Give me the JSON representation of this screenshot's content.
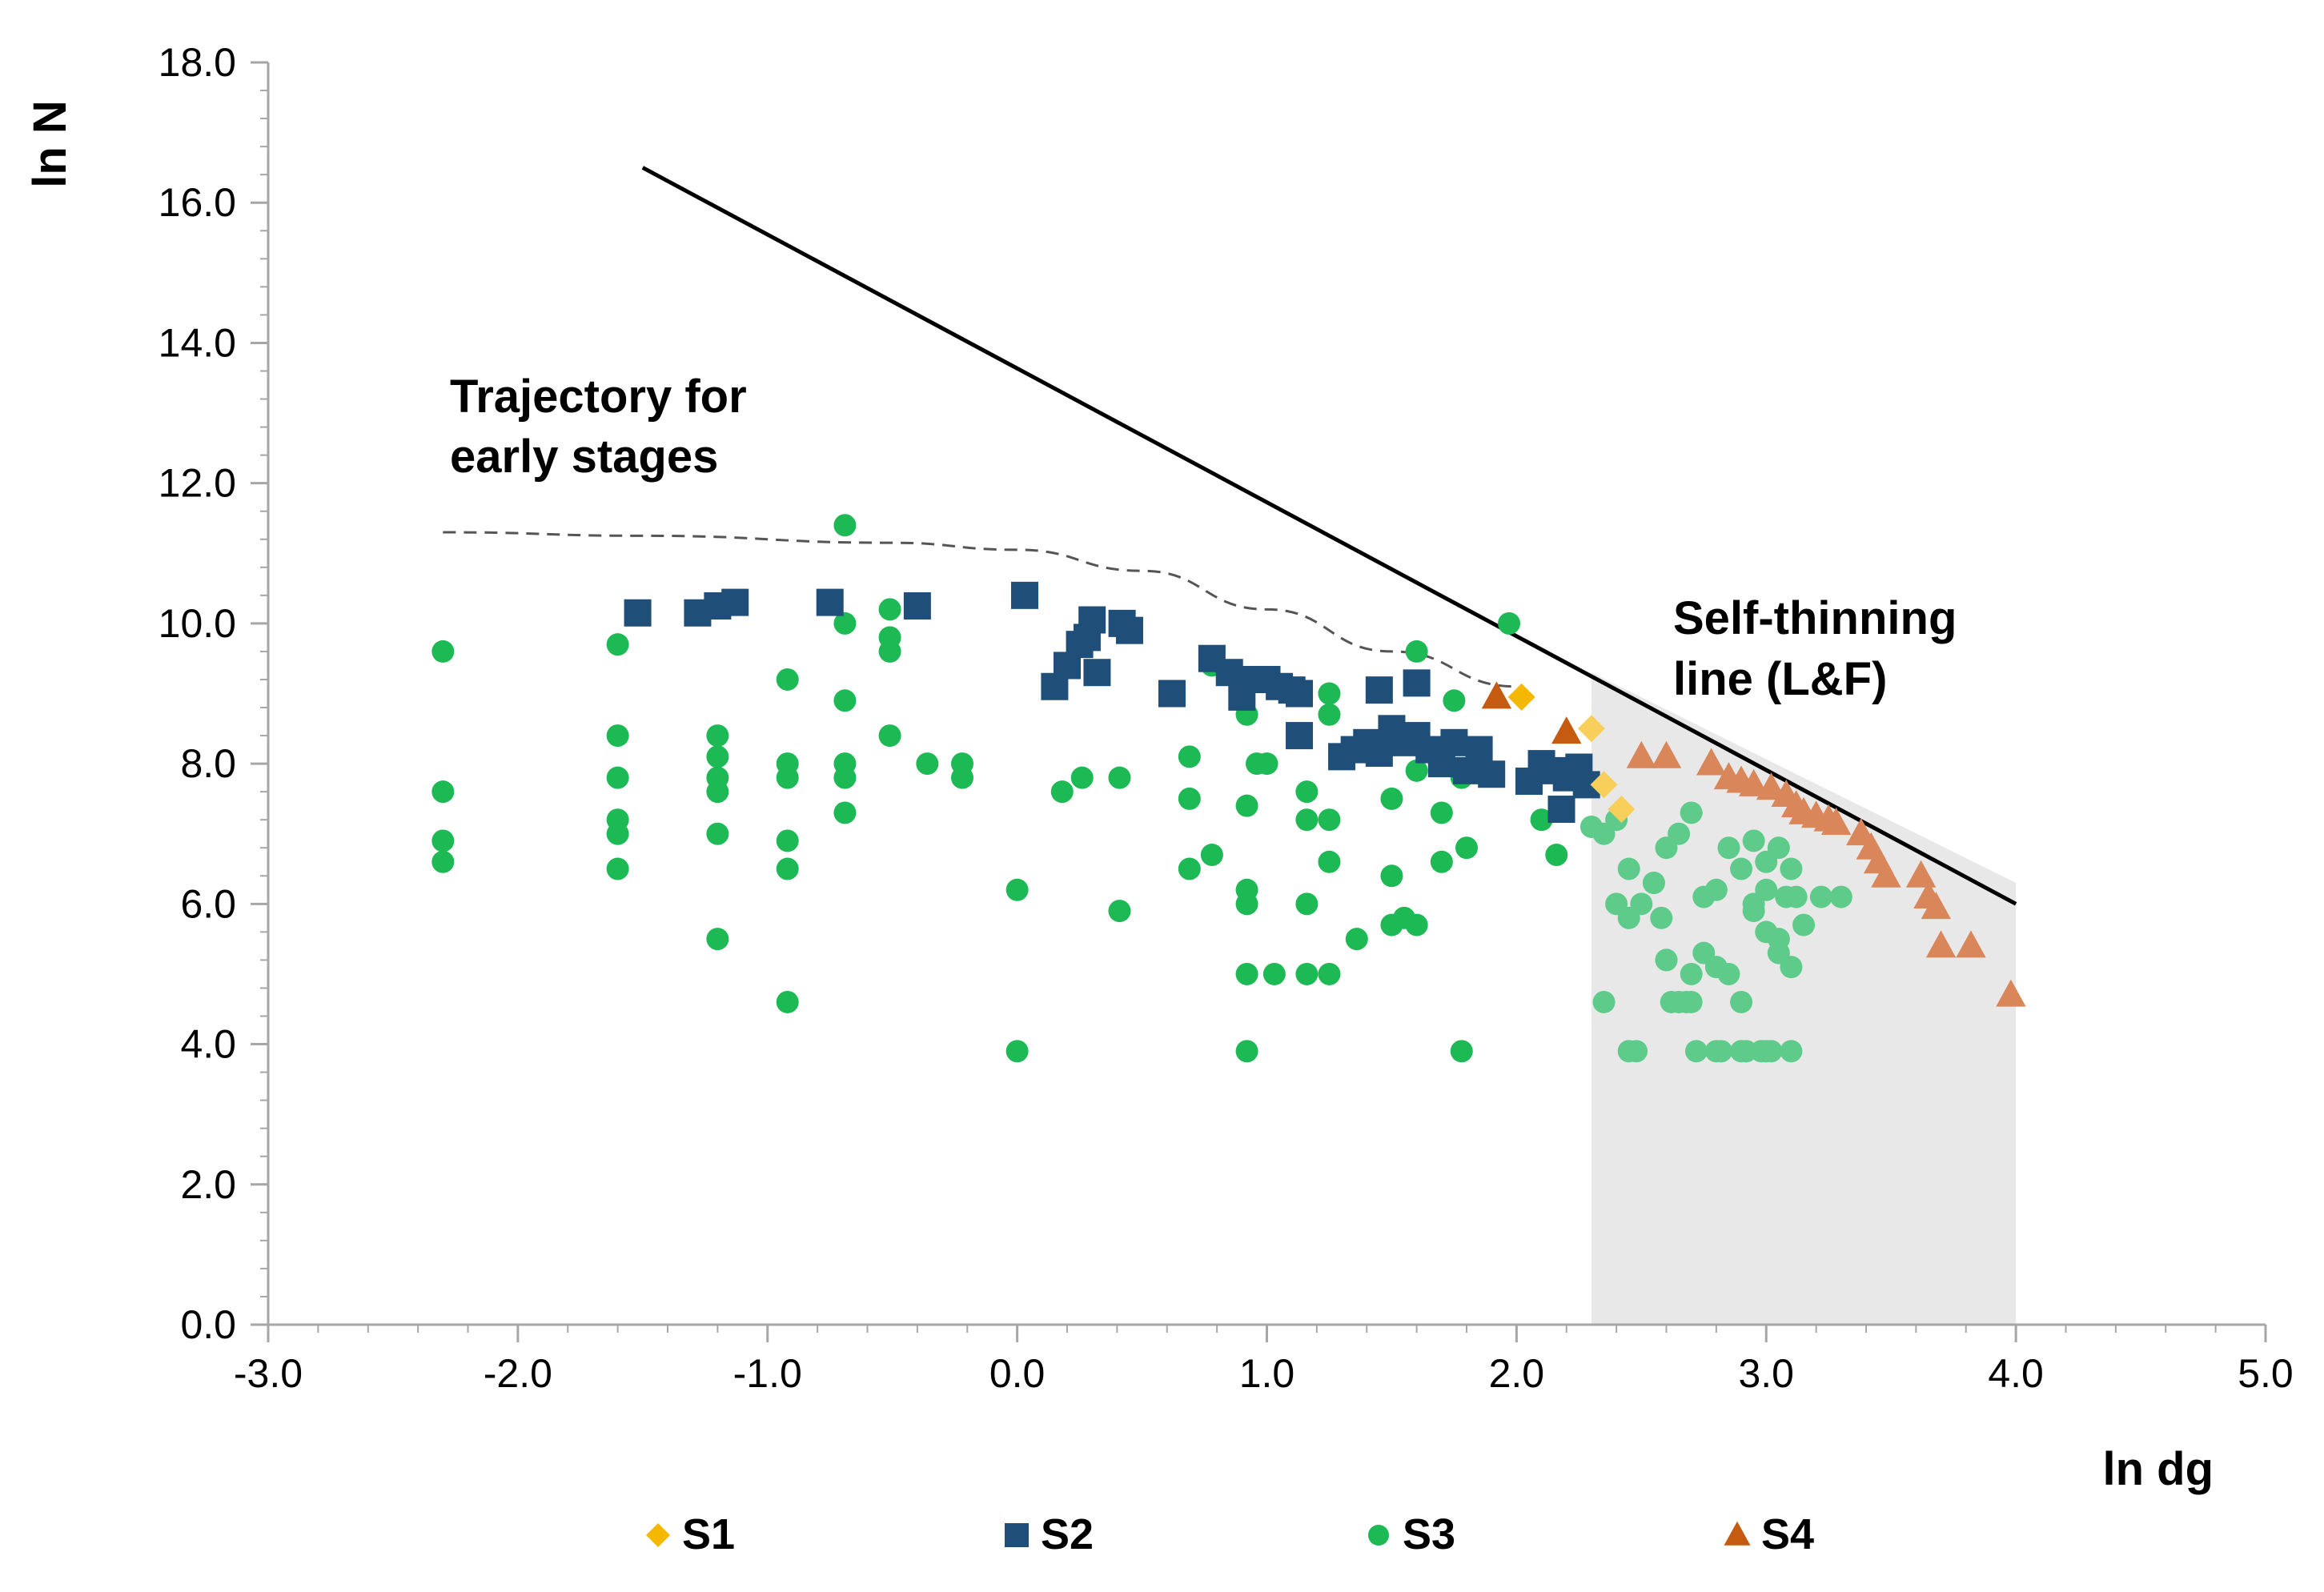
{
  "chart_data": {
    "type": "scatter",
    "xlabel": "ln dg",
    "ylabel": "ln N",
    "xlim": [
      -3.0,
      5.0
    ],
    "ylim": [
      0.0,
      18.0
    ],
    "x_ticks": [
      "-3.0",
      "-2.0",
      "-1.0",
      "0.0",
      "1.0",
      "2.0",
      "3.0",
      "4.0",
      "5.0"
    ],
    "y_ticks": [
      "0.0",
      "2.0",
      "4.0",
      "6.0",
      "8.0",
      "10.0",
      "12.0",
      "14.0",
      "16.0",
      "18.0"
    ],
    "legend_position": "bottom",
    "annotations": {
      "early_line1": "Trajectory for",
      "early_line2": "early stages",
      "self_line1": "Self-thinning",
      "self_line2": "line (L&F)"
    },
    "self_thinning_line": {
      "x": [
        -1.5,
        4.0
      ],
      "y": [
        16.5,
        6.0
      ],
      "color": "#000000"
    },
    "early_trajectory": {
      "x": [
        -2.3,
        -1.5,
        -0.5,
        0.0,
        0.5,
        1.0,
        1.5,
        2.0
      ],
      "y": [
        11.3,
        11.25,
        11.15,
        11.05,
        10.75,
        10.2,
        9.6,
        9.1
      ],
      "color": "#555555"
    },
    "shaded_region": {
      "x": [
        2.3,
        4.0
      ],
      "y_top": [
        9.3,
        6.3
      ],
      "color": "#e8e8e8"
    },
    "series": [
      {
        "name": "S1",
        "marker": "diamond",
        "color": "#F5B800",
        "x": [
          2.02,
          2.3,
          2.35,
          2.42
        ],
        "y": [
          8.95,
          8.5,
          7.7,
          7.35
        ]
      },
      {
        "name": "S2",
        "marker": "square",
        "color": "#1F4E79",
        "x": [
          -1.52,
          -1.28,
          -1.2,
          -1.13,
          -0.75,
          -0.4,
          0.03,
          0.15,
          0.2,
          0.25,
          0.28,
          0.3,
          0.32,
          0.42,
          0.45,
          0.62,
          0.78,
          0.85,
          0.9,
          0.95,
          1.0,
          1.05,
          1.1,
          1.13,
          1.3,
          1.35,
          1.4,
          1.45,
          1.5,
          1.55,
          1.6,
          1.65,
          1.7,
          1.75,
          1.8,
          1.85,
          1.9,
          1.13,
          1.45,
          1.6,
          2.05,
          2.1,
          2.15,
          2.2,
          2.25,
          2.28,
          2.18
        ],
        "y": [
          10.15,
          10.15,
          10.25,
          10.3,
          10.3,
          10.25,
          10.4,
          9.1,
          9.4,
          9.7,
          9.8,
          10.05,
          9.3,
          10.0,
          9.9,
          9.0,
          9.5,
          9.3,
          8.95,
          9.2,
          9.2,
          9.1,
          9.05,
          9.0,
          8.1,
          8.2,
          8.3,
          8.15,
          8.5,
          8.3,
          8.4,
          8.2,
          8.0,
          8.3,
          7.9,
          8.2,
          7.85,
          8.4,
          9.05,
          9.15,
          7.75,
          8.0,
          7.9,
          7.8,
          7.95,
          7.7,
          7.35
        ]
      },
      {
        "name": "S3",
        "marker": "circle",
        "color": "#1DB954",
        "x": [
          -2.3,
          -2.3,
          -2.3,
          -2.3,
          -1.6,
          -1.6,
          -1.6,
          -1.6,
          -1.6,
          -1.6,
          -1.2,
          -1.2,
          -1.2,
          -1.2,
          -1.2,
          -1.2,
          -0.92,
          -0.92,
          -0.92,
          -0.92,
          -0.92,
          -0.92,
          -0.69,
          -0.69,
          -0.69,
          -0.69,
          -0.69,
          -0.69,
          -0.51,
          -0.51,
          -0.51,
          -0.51,
          -0.36,
          -0.22,
          -0.22,
          0.0,
          0.0,
          0.18,
          0.26,
          0.41,
          0.41,
          0.69,
          0.69,
          0.69,
          0.78,
          0.78,
          0.92,
          0.92,
          0.92,
          0.92,
          0.92,
          0.92,
          0.96,
          1.0,
          1.03,
          1.16,
          1.16,
          1.16,
          1.16,
          1.25,
          1.25,
          1.25,
          1.25,
          1.25,
          1.36,
          1.5,
          1.5,
          1.5,
          1.5,
          1.55,
          1.6,
          1.6,
          1.6,
          1.7,
          1.7,
          1.75,
          1.78,
          1.78,
          1.8,
          1.85,
          1.97,
          2.1,
          2.16,
          2.3,
          2.35,
          2.4,
          2.45,
          2.5,
          2.55,
          2.6,
          2.65,
          2.7,
          2.75,
          2.8,
          2.85,
          2.9,
          2.95,
          3.0,
          3.05,
          3.1,
          2.4,
          2.45,
          2.55,
          2.6,
          2.7,
          2.75,
          2.8,
          2.85,
          2.9,
          2.95,
          3.0,
          3.05,
          3.1,
          3.15,
          2.62,
          2.68,
          2.72,
          2.82,
          2.92,
          2.98,
          3.02,
          3.08,
          3.12,
          3.22,
          3.3,
          2.35,
          2.45,
          2.48,
          2.6,
          2.65,
          2.7,
          2.8,
          2.9,
          3.0,
          3.1,
          2.58,
          3.0,
          2.95,
          3.05
        ],
        "y": [
          9.6,
          7.6,
          6.9,
          6.6,
          9.7,
          8.4,
          7.8,
          7.2,
          7.0,
          6.5,
          8.4,
          8.1,
          7.8,
          7.6,
          7.0,
          5.5,
          9.2,
          8.0,
          7.8,
          6.9,
          6.5,
          4.6,
          11.4,
          10.0,
          8.9,
          8.0,
          7.8,
          7.3,
          10.2,
          9.8,
          9.6,
          8.4,
          8.0,
          8.0,
          7.8,
          6.2,
          3.9,
          7.6,
          7.8,
          7.8,
          5.9,
          8.1,
          7.5,
          6.5,
          9.4,
          6.7,
          8.7,
          7.4,
          6.2,
          6.0,
          5.0,
          3.9,
          8.0,
          8.0,
          5.0,
          7.6,
          7.2,
          6.0,
          5.0,
          9.0,
          8.7,
          7.2,
          6.6,
          5.0,
          5.5,
          8.3,
          7.5,
          6.4,
          5.7,
          5.8,
          9.6,
          7.9,
          5.7,
          7.3,
          6.6,
          8.9,
          7.8,
          3.9,
          6.8,
          8.0,
          10.0,
          7.2,
          6.7,
          7.1,
          7.0,
          7.2,
          6.5,
          6.0,
          6.3,
          6.8,
          7.0,
          7.3,
          6.1,
          6.2,
          6.8,
          6.5,
          5.9,
          6.2,
          6.8,
          6.5,
          6.0,
          5.8,
          6.3,
          5.2,
          5.0,
          5.3,
          5.1,
          5.0,
          4.6,
          6.0,
          5.6,
          5.3,
          5.1,
          5.7,
          4.6,
          4.6,
          3.9,
          3.9,
          3.9,
          3.9,
          3.9,
          6.1,
          6.1,
          6.1,
          6.1,
          4.6,
          3.9,
          3.9,
          5.2,
          4.6,
          4.6,
          3.9,
          3.9,
          3.9,
          3.9,
          5.8,
          6.6,
          6.9,
          5.5
        ],
        "size": "small"
      },
      {
        "name": "S4",
        "marker": "triangle",
        "color": "#C55A11",
        "x": [
          1.92,
          2.2,
          2.5,
          2.6,
          2.78,
          2.85,
          2.9,
          2.95,
          3.02,
          3.08,
          3.12,
          3.15,
          3.2,
          3.25,
          3.28,
          3.38,
          3.42,
          3.45,
          3.48,
          3.62,
          3.65,
          3.68,
          3.7,
          3.82,
          3.98
        ],
        "y": [
          8.95,
          8.45,
          8.1,
          8.1,
          8.0,
          7.8,
          7.75,
          7.7,
          7.65,
          7.55,
          7.4,
          7.3,
          7.25,
          7.2,
          7.15,
          7.0,
          6.8,
          6.6,
          6.4,
          6.4,
          6.1,
          5.95,
          5.4,
          5.4,
          4.7
        ]
      }
    ]
  }
}
